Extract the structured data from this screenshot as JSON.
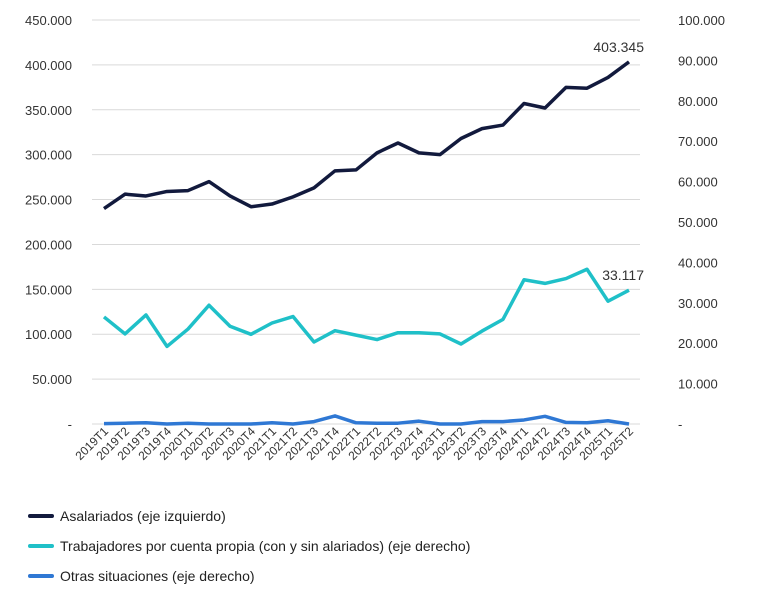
{
  "chart_data": {
    "type": "line",
    "title": "",
    "categories": [
      "2019T1",
      "2019T2",
      "2019T3",
      "2019T4",
      "2020T1",
      "2020T2",
      "2020T3",
      "2020T4",
      "2021T1",
      "2021T2",
      "2021T3",
      "2021T4",
      "2022T1",
      "2022T2",
      "2022T3",
      "2022T4",
      "2023T1",
      "2023T2",
      "2023T3",
      "2023T4",
      "2024T1",
      "2024T2",
      "2024T3",
      "2024T4",
      "2025T1",
      "2025T2"
    ],
    "left_axis": {
      "ylim": [
        0,
        450000
      ],
      "ticks": [
        "-",
        "50.000",
        "100.000",
        "150.000",
        "200.000",
        "250.000",
        "300.000",
        "350.000",
        "400.000",
        "450.000"
      ]
    },
    "right_axis": {
      "ylim": [
        0,
        100000
      ],
      "ticks": [
        "-",
        "10.000",
        "20.000",
        "30.000",
        "40.000",
        "50.000",
        "60.000",
        "70.000",
        "80.000",
        "90.000",
        "100.000"
      ]
    },
    "grid": true,
    "legend_position": "bottom",
    "series": [
      {
        "name": "Asalariados (eje izquierdo)",
        "axis": "left",
        "color": "#121a3d",
        "values": [
          240000,
          256000,
          254000,
          259000,
          260000,
          270000,
          254000,
          242000,
          245000,
          253000,
          263000,
          282000,
          283000,
          302000,
          313000,
          302000,
          300000,
          318000,
          329000,
          333000,
          357000,
          352000,
          375000,
          374000,
          386000,
          403345
        ],
        "end_label": "403.345"
      },
      {
        "name": "Trabajadores por cuenta propia (con y sin alariados) (eje derecho)",
        "axis": "right",
        "color": "#1fc0c8",
        "values": [
          26500,
          22300,
          27000,
          19200,
          23500,
          29400,
          24200,
          22200,
          25000,
          26600,
          20300,
          23100,
          22000,
          20900,
          22600,
          22600,
          22300,
          19800,
          23000,
          25900,
          35700,
          34800,
          36000,
          38300,
          30400,
          33117
        ],
        "end_label": "33.117"
      },
      {
        "name": "Otras situaciones (eje derecho)",
        "axis": "right",
        "color": "#2f78d4",
        "values": [
          100,
          200,
          300,
          0,
          200,
          0,
          0,
          0,
          300,
          0,
          600,
          2000,
          300,
          200,
          200,
          700,
          0,
          0,
          600,
          600,
          1000,
          1900,
          400,
          300,
          800,
          0
        ]
      }
    ]
  }
}
